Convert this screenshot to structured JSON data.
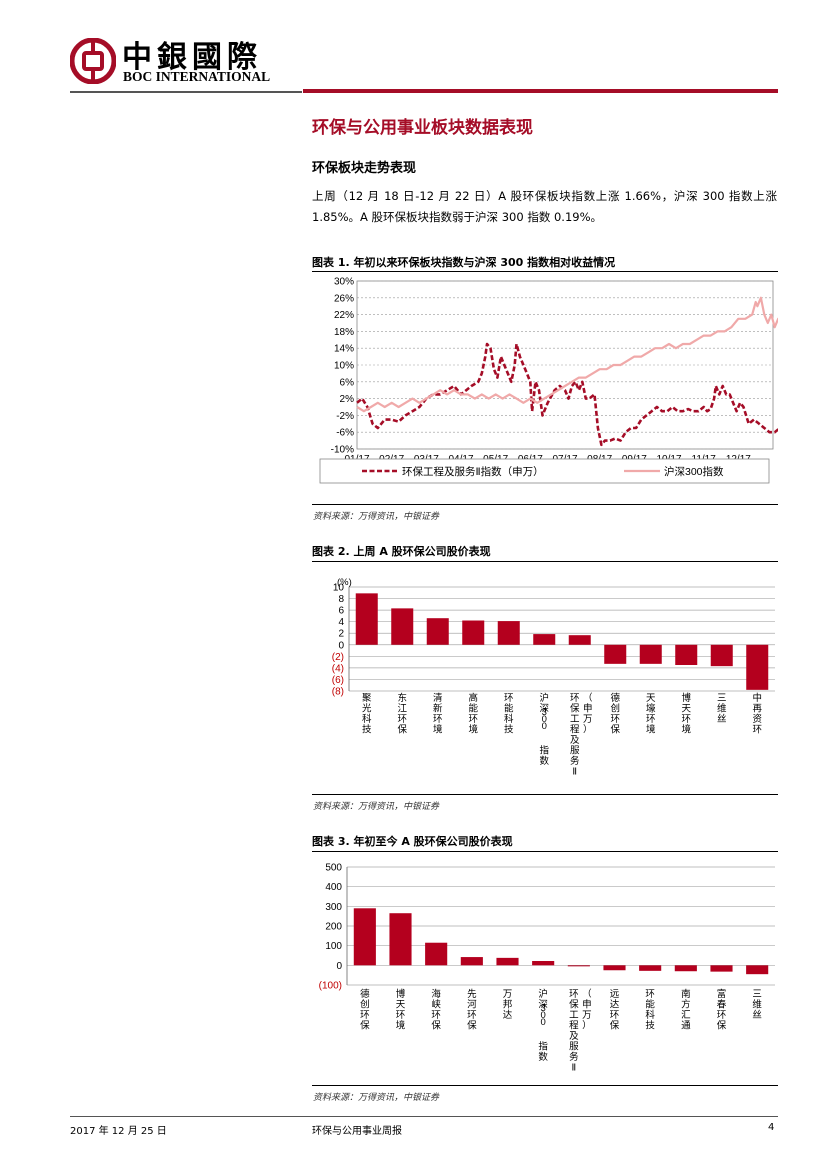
{
  "header": {
    "logo_cn": "中銀國際",
    "logo_en": "BOC INTERNATIONAL"
  },
  "section_title": "环保与公用事业板块数据表现",
  "subsection_title": "环保板块走势表现",
  "paragraph": "上周（12 月 18 日-12 月 22 日）A 股环保板块指数上涨 1.66%，沪深 300 指数上涨 1.85%。A 股环保板块指数弱于沪深 300 指数 0.19%。",
  "figure1": {
    "title": "图表 1. 年初以来环保板块指数与沪深 300 指数相对收益情况",
    "source": "资料来源：万得资讯，中银证券"
  },
  "figure2": {
    "title": "图表 2. 上周 A 股环保公司股价表现",
    "source": "资料来源：万得资讯，中银证券"
  },
  "figure3": {
    "title": "图表 3. 年初至今 A 股环保公司股价表现",
    "source": "资料来源：万得资讯，中银证券"
  },
  "footer": {
    "date": "2017 年 12 月 25 日",
    "report": "环保与公用事业周报",
    "page": "4"
  },
  "colors": {
    "brand_red": "#a50d27",
    "bar_red": "#b4001e",
    "hs300_pink": "#f0a9a9",
    "neg_label_red": "#c00000"
  },
  "chart_data": [
    {
      "type": "line",
      "x_ticks": [
        "01/17",
        "02/17",
        "03/17",
        "04/17",
        "05/17",
        "06/17",
        "07/17",
        "08/17",
        "09/17",
        "10/17",
        "11/17",
        "12/17"
      ],
      "y_ticks": [
        "30%",
        "26%",
        "22%",
        "18%",
        "14%",
        "10%",
        "6%",
        "2%",
        "-2%",
        "-6%",
        "-10%"
      ],
      "ylim": [
        -10,
        30
      ],
      "legend_position": "bottom",
      "series": [
        {
          "name": "环保工程及服务Ⅱ指数（申万）",
          "style": "dashed",
          "color": "#a50d27",
          "points": [
            [
              0,
              1
            ],
            [
              0.15,
              2
            ],
            [
              0.3,
              0
            ],
            [
              0.45,
              -4
            ],
            [
              0.6,
              -5
            ],
            [
              0.8,
              -3
            ],
            [
              1,
              -3
            ],
            [
              1.2,
              -3.5
            ],
            [
              1.4,
              -2
            ],
            [
              1.6,
              -1
            ],
            [
              1.8,
              0
            ],
            [
              2,
              2
            ],
            [
              2.2,
              3
            ],
            [
              2.4,
              3
            ],
            [
              2.6,
              4
            ],
            [
              2.8,
              5
            ],
            [
              3,
              3
            ],
            [
              3.15,
              4
            ],
            [
              3.3,
              5
            ],
            [
              3.5,
              6
            ],
            [
              3.6,
              8
            ],
            [
              3.7,
              12
            ],
            [
              3.75,
              15
            ],
            [
              3.85,
              14
            ],
            [
              3.95,
              9
            ],
            [
              4.05,
              7
            ],
            [
              4.15,
              12
            ],
            [
              4.25,
              10
            ],
            [
              4.35,
              8
            ],
            [
              4.45,
              6
            ],
            [
              4.55,
              10
            ],
            [
              4.6,
              15
            ],
            [
              4.7,
              12
            ],
            [
              4.8,
              10
            ],
            [
              4.9,
              8
            ],
            [
              5,
              6
            ],
            [
              5.05,
              -1
            ],
            [
              5.15,
              6
            ],
            [
              5.25,
              4
            ],
            [
              5.35,
              -2
            ],
            [
              5.5,
              1
            ],
            [
              5.7,
              4
            ],
            [
              5.85,
              5
            ],
            [
              6,
              4
            ],
            [
              6.1,
              2
            ],
            [
              6.2,
              5
            ],
            [
              6.3,
              6
            ],
            [
              6.4,
              4
            ],
            [
              6.5,
              6
            ],
            [
              6.6,
              2
            ],
            [
              6.7,
              2
            ],
            [
              6.85,
              3
            ],
            [
              6.95,
              -5
            ],
            [
              7.05,
              -9
            ],
            [
              7.15,
              -8
            ],
            [
              7.3,
              -8
            ],
            [
              7.45,
              -7.5
            ],
            [
              7.6,
              -8
            ],
            [
              7.75,
              -6
            ],
            [
              7.9,
              -5
            ],
            [
              8.05,
              -5
            ],
            [
              8.2,
              -3
            ],
            [
              8.35,
              -2
            ],
            [
              8.5,
              -1
            ],
            [
              8.65,
              0
            ],
            [
              8.8,
              -1
            ],
            [
              8.95,
              -1
            ],
            [
              9.1,
              0
            ],
            [
              9.25,
              -1
            ],
            [
              9.4,
              -1
            ],
            [
              9.55,
              -0.5
            ],
            [
              9.7,
              -1
            ],
            [
              9.85,
              -1
            ],
            [
              10,
              0
            ],
            [
              10.1,
              -1
            ],
            [
              10.2,
              -0.5
            ],
            [
              10.3,
              2
            ],
            [
              10.35,
              5
            ],
            [
              10.45,
              3
            ],
            [
              10.55,
              5
            ],
            [
              10.65,
              3
            ],
            [
              10.75,
              3
            ],
            [
              10.85,
              1
            ],
            [
              10.95,
              -1
            ],
            [
              11.05,
              1
            ],
            [
              11.15,
              0
            ],
            [
              11.3,
              -4
            ],
            [
              11.45,
              -3
            ],
            [
              11.6,
              -4
            ],
            [
              11.75,
              -5
            ],
            [
              11.9,
              -6
            ],
            [
              12.05,
              -6
            ],
            [
              12.2,
              -5
            ],
            [
              12.35,
              -6
            ],
            [
              12.5,
              -5
            ],
            [
              12.6,
              -4
            ],
            [
              12.7,
              -3
            ]
          ]
        },
        {
          "name": "沪深300指数",
          "style": "solid",
          "color": "#f0a9a9",
          "points": [
            [
              0,
              0
            ],
            [
              0.2,
              -1
            ],
            [
              0.4,
              0
            ],
            [
              0.6,
              1
            ],
            [
              0.8,
              0
            ],
            [
              1,
              1
            ],
            [
              1.2,
              0
            ],
            [
              1.4,
              1
            ],
            [
              1.6,
              2
            ],
            [
              1.8,
              1
            ],
            [
              2,
              2
            ],
            [
              2.2,
              3
            ],
            [
              2.4,
              4
            ],
            [
              2.6,
              3
            ],
            [
              2.8,
              4
            ],
            [
              3,
              3
            ],
            [
              3.2,
              3
            ],
            [
              3.4,
              2
            ],
            [
              3.6,
              3
            ],
            [
              3.8,
              2
            ],
            [
              4,
              3
            ],
            [
              4.2,
              2
            ],
            [
              4.4,
              3
            ],
            [
              4.6,
              2
            ],
            [
              4.8,
              1
            ],
            [
              5,
              2
            ],
            [
              5.2,
              1
            ],
            [
              5.4,
              2
            ],
            [
              5.6,
              3
            ],
            [
              5.8,
              4
            ],
            [
              6,
              5
            ],
            [
              6.2,
              6
            ],
            [
              6.4,
              7
            ],
            [
              6.6,
              7
            ],
            [
              6.8,
              8
            ],
            [
              7,
              9
            ],
            [
              7.2,
              9
            ],
            [
              7.4,
              10
            ],
            [
              7.6,
              10
            ],
            [
              7.8,
              11
            ],
            [
              8,
              12
            ],
            [
              8.2,
              12
            ],
            [
              8.4,
              13
            ],
            [
              8.6,
              14
            ],
            [
              8.8,
              14
            ],
            [
              9,
              15
            ],
            [
              9.2,
              14
            ],
            [
              9.4,
              15
            ],
            [
              9.6,
              15
            ],
            [
              9.8,
              16
            ],
            [
              10,
              17
            ],
            [
              10.2,
              17
            ],
            [
              10.4,
              18
            ],
            [
              10.6,
              18
            ],
            [
              10.8,
              19
            ],
            [
              11,
              21
            ],
            [
              11.2,
              21
            ],
            [
              11.4,
              22
            ],
            [
              11.5,
              25
            ],
            [
              11.55,
              24
            ],
            [
              11.65,
              26
            ],
            [
              11.75,
              22
            ],
            [
              11.85,
              20
            ],
            [
              11.95,
              22
            ],
            [
              12.05,
              19
            ],
            [
              12.15,
              21
            ],
            [
              12.25,
              19
            ],
            [
              12.35,
              20
            ],
            [
              12.45,
              21
            ],
            [
              12.55,
              19
            ],
            [
              12.65,
              20
            ],
            [
              12.75,
              21
            ]
          ]
        }
      ]
    },
    {
      "type": "bar",
      "unit_label": "(%)",
      "ylim": [
        -8,
        10
      ],
      "y_ticks": [
        "10",
        "8",
        "6",
        "4",
        "2",
        "0",
        "(2)",
        "(4)",
        "(6)",
        "(8)"
      ],
      "categories": [
        "聚光科技",
        "东江环保",
        "清新环境",
        "高能环境",
        "环能科技",
        "沪深300指数",
        "环保工程及服务Ⅱ（申万）",
        "德创环保",
        "天壕环境",
        "博天环境",
        "三维丝",
        "中再资环"
      ],
      "values": [
        8.9,
        6.3,
        4.6,
        4.2,
        4.1,
        1.85,
        1.66,
        -3.3,
        -3.3,
        -3.5,
        -3.7,
        -7.8
      ]
    },
    {
      "type": "bar",
      "ylim": [
        -100,
        500
      ],
      "y_ticks": [
        "500",
        "400",
        "300",
        "200",
        "100",
        "0",
        "(100)"
      ],
      "categories": [
        "德创环保",
        "博天环境",
        "海峡环保",
        "先河环保",
        "万邦达",
        "沪深300指数",
        "环保工程及服务Ⅱ（申万）",
        "远达环保",
        "环能科技",
        "南方汇通",
        "富春环保",
        "三维丝"
      ],
      "values": [
        290,
        265,
        115,
        42,
        38,
        22,
        -2,
        -25,
        -28,
        -30,
        -32,
        -45
      ]
    }
  ]
}
